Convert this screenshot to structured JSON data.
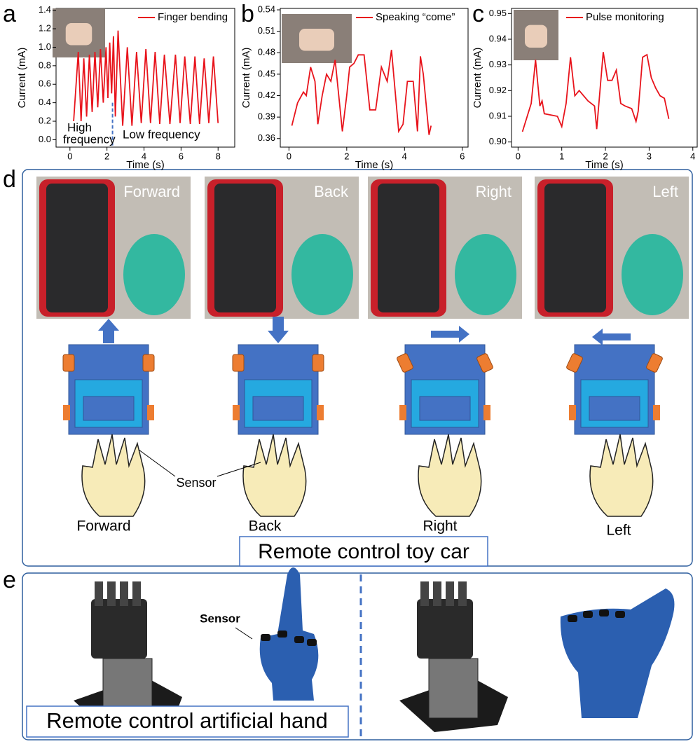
{
  "chart_data": [
    {
      "type": "line",
      "panel_label": "a",
      "xlabel": "Time (s)",
      "ylabel": "Current (mA)",
      "x": [
        0.2,
        0.45,
        0.6,
        0.75,
        0.9,
        1.05,
        1.2,
        1.35,
        1.5,
        1.65,
        1.8,
        1.95,
        2.05,
        2.15,
        2.25,
        2.35,
        2.45,
        2.6,
        2.85,
        3.1,
        3.35,
        3.6,
        3.85,
        4.1,
        4.35,
        4.6,
        4.85,
        5.1,
        5.4,
        5.7,
        5.95,
        6.2,
        6.5,
        6.75,
        7.0,
        7.25,
        7.5,
        7.75,
        8.0
      ],
      "series": [
        {
          "name": "Finger bending",
          "color": "#e8141c",
          "values": [
            0.2,
            0.95,
            0.2,
            0.88,
            0.25,
            0.92,
            0.3,
            0.95,
            0.35,
            0.98,
            0.4,
            1.0,
            0.45,
            1.05,
            0.5,
            1.12,
            0.25,
            1.18,
            0.15,
            1.0,
            0.15,
            0.95,
            0.18,
            0.98,
            0.18,
            0.95,
            0.17,
            0.92,
            0.17,
            0.92,
            0.18,
            0.9,
            0.17,
            0.9,
            0.17,
            0.88,
            0.18,
            0.9,
            0.18
          ]
        }
      ],
      "xlim": [
        -0.75,
        8.9
      ],
      "ylim": [
        -0.08,
        1.42
      ],
      "xticks": [
        0,
        2,
        4,
        6,
        8
      ],
      "yticks": [
        {
          "value": 0,
          "label": "0.0"
        },
        0.2,
        0.4,
        0.6,
        0.8,
        {
          "value": 1,
          "label": "1.0"
        },
        1.2,
        1.4
      ],
      "divider_x": 2.3,
      "annotations": [
        "High",
        "frequency",
        "Low frequency"
      ]
    },
    {
      "type": "line",
      "panel_label": "b",
      "xlabel": "Time (s)",
      "ylabel": "Current (mA)",
      "x": [
        0.1,
        0.3,
        0.5,
        0.6,
        0.75,
        0.9,
        1.0,
        1.15,
        1.3,
        1.45,
        1.6,
        1.85,
        2.0,
        2.1,
        2.25,
        2.4,
        2.6,
        2.8,
        3.0,
        3.2,
        3.4,
        3.55,
        3.8,
        3.95,
        4.1,
        4.3,
        4.45,
        4.55,
        4.65,
        4.85,
        4.92
      ],
      "series": [
        {
          "name": "Speaking “come”",
          "color": "#e8141c",
          "values": [
            0.378,
            0.41,
            0.425,
            0.42,
            0.46,
            0.44,
            0.38,
            0.42,
            0.45,
            0.44,
            0.47,
            0.37,
            0.42,
            0.46,
            0.465,
            0.477,
            0.477,
            0.4,
            0.4,
            0.46,
            0.44,
            0.484,
            0.37,
            0.38,
            0.44,
            0.44,
            0.37,
            0.475,
            0.45,
            0.365,
            0.378
          ]
        }
      ],
      "xlim": [
        -0.3,
        6.2
      ],
      "ylim": [
        0.348,
        0.542
      ],
      "xticks": [
        0,
        2,
        4,
        6
      ],
      "yticks": [
        0.36,
        0.39,
        0.42,
        0.45,
        0.48,
        0.51,
        0.54
      ]
    },
    {
      "type": "line",
      "panel_label": "c",
      "xlabel": "Time (s)",
      "ylabel": "Current (mA)",
      "x": [
        0.1,
        0.3,
        0.4,
        0.5,
        0.55,
        0.6,
        0.9,
        1.0,
        1.1,
        1.2,
        1.3,
        1.4,
        1.6,
        1.75,
        1.8,
        1.95,
        2.05,
        2.15,
        2.25,
        2.35,
        2.45,
        2.6,
        2.7,
        2.75,
        2.85,
        2.95,
        3.05,
        3.15,
        3.25,
        3.35,
        3.45
      ],
      "series": [
        {
          "name": "Pulse monitoring",
          "color": "#e8141c",
          "values": [
            0.904,
            0.915,
            0.932,
            0.914,
            0.916,
            0.911,
            0.91,
            0.906,
            0.915,
            0.933,
            0.918,
            0.92,
            0.916,
            0.914,
            0.905,
            0.935,
            0.924,
            0.924,
            0.928,
            0.915,
            0.914,
            0.913,
            0.908,
            0.912,
            0.933,
            0.934,
            0.925,
            0.921,
            0.918,
            0.917,
            0.909
          ]
        }
      ],
      "xlim": [
        -0.15,
        4.1
      ],
      "ylim": [
        0.898,
        0.952
      ],
      "xticks": [
        0,
        1,
        2,
        3,
        4
      ],
      "yticks": [
        {
          "value": 0.9,
          "label": "0.90"
        },
        0.91,
        0.92,
        0.93,
        0.94,
        0.95
      ]
    }
  ],
  "toy_car": {
    "panel_label": "d",
    "photo_captions": [
      "Forward",
      "Back",
      "Right",
      "Left"
    ],
    "hand_labels": [
      "Forward",
      "Back",
      "Right",
      "Left"
    ],
    "sensor": "Sensor",
    "caption": "Remote control toy car"
  },
  "artificial_hand": {
    "panel_label": "e",
    "sensor": "Sensor",
    "caption": "Remote control artificial hand"
  }
}
